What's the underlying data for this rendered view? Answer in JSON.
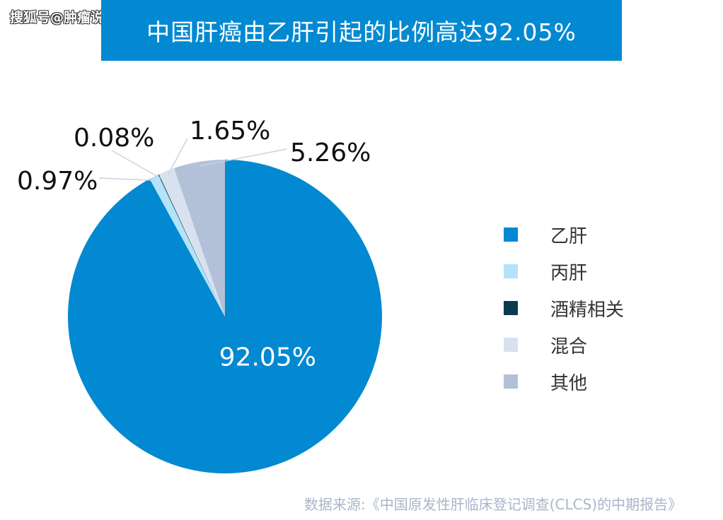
{
  "watermark": "搜狐号@肿瘤说",
  "title": "中国肝癌由乙肝引起的比例高达92.05%",
  "source": "数据来源:《中国原发性肝临床登记调查(CLCS)的中期报告》",
  "chart_data": {
    "type": "pie",
    "title": "中国肝癌由乙肝引起的比例高达92.05%",
    "slices": [
      {
        "name": "乙肝",
        "value": 92.05,
        "label": "92.05%",
        "color": "#0289d1"
      },
      {
        "name": "丙肝",
        "value": 0.97,
        "label": "0.97%",
        "color": "#b3e3f8"
      },
      {
        "name": "酒精相关",
        "value": 0.08,
        "label": "0.08%",
        "color": "#0b3a4f"
      },
      {
        "name": "混合",
        "value": 1.65,
        "label": "1.65%",
        "color": "#d8e2ef"
      },
      {
        "name": "其他",
        "value": 5.26,
        "label": "5.26%",
        "color": "#b3c1d8"
      }
    ],
    "legend_position": "right"
  }
}
